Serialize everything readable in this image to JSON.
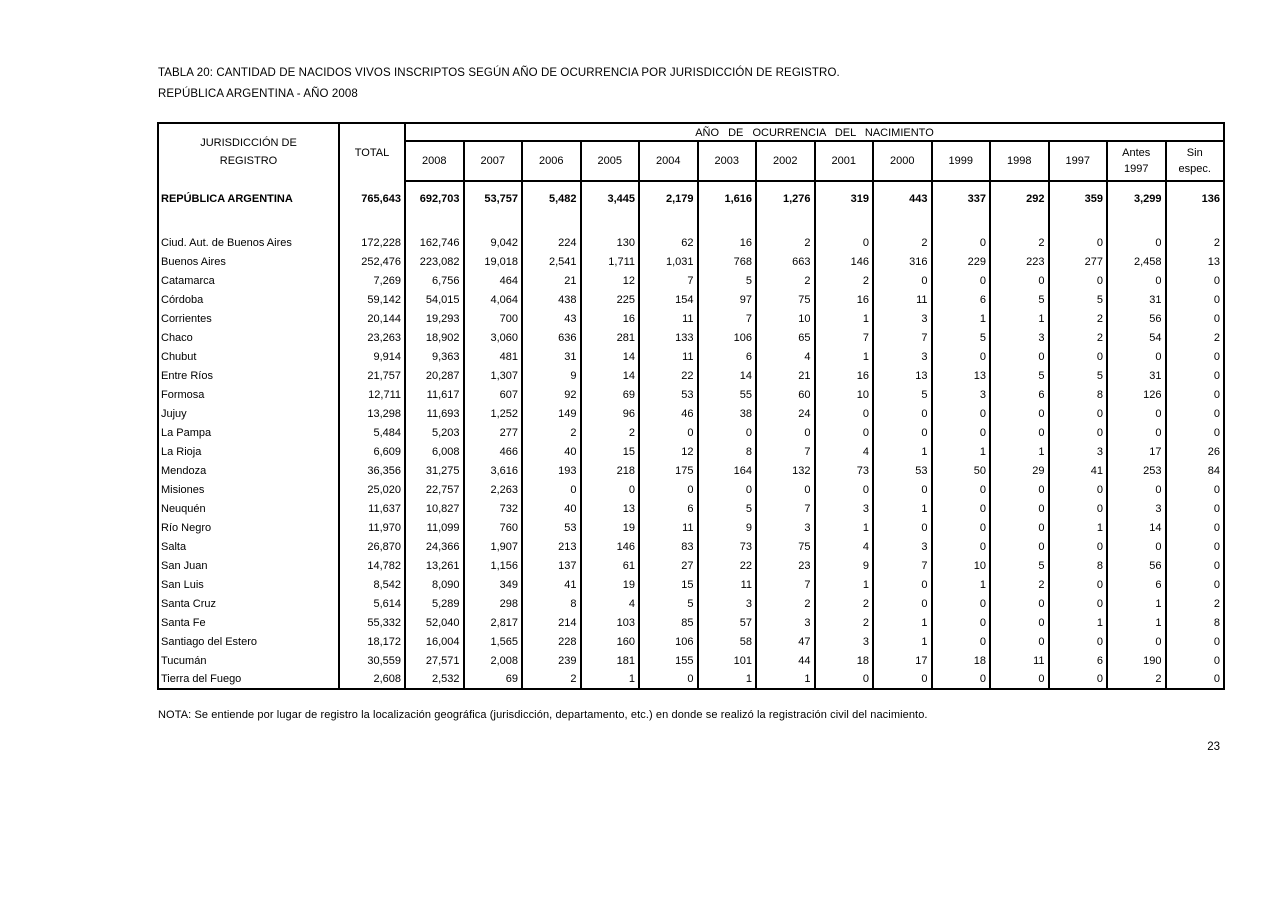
{
  "colors": {
    "text": "#000000",
    "background": "#ffffff",
    "border": "#000000"
  },
  "page": {
    "title_line1": "TABLA 20: CANTIDAD DE NACIDOS VIVOS INSCRIPTOS SEGÚN AÑO DE OCURRENCIA POR JURISDICCIÓN  DE REGISTRO.",
    "title_line2": "REPÚBLICA ARGENTINA -  AÑO 2008",
    "note": "NOTA: Se entiende por lugar de registro la localización geográfica (jurisdicción, departamento, etc.) en donde se realizó la registración civil del nacimiento.",
    "page_number": "23"
  },
  "table": {
    "span_header": "AÑO DE OCURRENCIA DEL NACIMIENTO",
    "jurisdiction_header": "JURISDICCIÓN DE\nREGISTRO",
    "total_header": "TOTAL",
    "year_columns": [
      "2008",
      "2007",
      "2006",
      "2005",
      "2004",
      "2003",
      "2002",
      "2001",
      "2000",
      "1999",
      "1998",
      "1997",
      "Antes\n1997",
      "Sin\nespec."
    ],
    "total_row": {
      "name": "REPÚBLICA ARGENTINA",
      "values": [
        "765,643",
        "692,703",
        "53,757",
        "5,482",
        "3,445",
        "2,179",
        "1,616",
        "1,276",
        "319",
        "443",
        "337",
        "292",
        "359",
        "3,299",
        "136"
      ]
    },
    "rows": [
      {
        "name": "Ciud. Aut. de  Buenos Aires",
        "values": [
          "172,228",
          "162,746",
          "9,042",
          "224",
          "130",
          "62",
          "16",
          "2",
          "0",
          "2",
          "0",
          "2",
          "0",
          "0",
          "2"
        ]
      },
      {
        "name": "Buenos Aires",
        "values": [
          "252,476",
          "223,082",
          "19,018",
          "2,541",
          "1,711",
          "1,031",
          "768",
          "663",
          "146",
          "316",
          "229",
          "223",
          "277",
          "2,458",
          "13"
        ]
      },
      {
        "name": "Catamarca",
        "values": [
          "7,269",
          "6,756",
          "464",
          "21",
          "12",
          "7",
          "5",
          "2",
          "2",
          "0",
          "0",
          "0",
          "0",
          "0",
          "0"
        ]
      },
      {
        "name": "Córdoba",
        "values": [
          "59,142",
          "54,015",
          "4,064",
          "438",
          "225",
          "154",
          "97",
          "75",
          "16",
          "11",
          "6",
          "5",
          "5",
          "31",
          "0"
        ]
      },
      {
        "name": "Corrientes",
        "values": [
          "20,144",
          "19,293",
          "700",
          "43",
          "16",
          "11",
          "7",
          "10",
          "1",
          "3",
          "1",
          "1",
          "2",
          "56",
          "0"
        ]
      },
      {
        "name": "Chaco",
        "values": [
          "23,263",
          "18,902",
          "3,060",
          "636",
          "281",
          "133",
          "106",
          "65",
          "7",
          "7",
          "5",
          "3",
          "2",
          "54",
          "2"
        ]
      },
      {
        "name": "Chubut",
        "values": [
          "9,914",
          "9,363",
          "481",
          "31",
          "14",
          "11",
          "6",
          "4",
          "1",
          "3",
          "0",
          "0",
          "0",
          "0",
          "0"
        ]
      },
      {
        "name": "Entre Ríos",
        "values": [
          "21,757",
          "20,287",
          "1,307",
          "9",
          "14",
          "22",
          "14",
          "21",
          "16",
          "13",
          "13",
          "5",
          "5",
          "31",
          "0"
        ]
      },
      {
        "name": "Formosa",
        "values": [
          "12,711",
          "11,617",
          "607",
          "92",
          "69",
          "53",
          "55",
          "60",
          "10",
          "5",
          "3",
          "6",
          "8",
          "126",
          "0"
        ]
      },
      {
        "name": "Jujuy",
        "values": [
          "13,298",
          "11,693",
          "1,252",
          "149",
          "96",
          "46",
          "38",
          "24",
          "0",
          "0",
          "0",
          "0",
          "0",
          "0",
          "0"
        ]
      },
      {
        "name": "La Pampa",
        "values": [
          "5,484",
          "5,203",
          "277",
          "2",
          "2",
          "0",
          "0",
          "0",
          "0",
          "0",
          "0",
          "0",
          "0",
          "0",
          "0"
        ]
      },
      {
        "name": "La Rioja",
        "values": [
          "6,609",
          "6,008",
          "466",
          "40",
          "15",
          "12",
          "8",
          "7",
          "4",
          "1",
          "1",
          "1",
          "3",
          "17",
          "26"
        ]
      },
      {
        "name": "Mendoza",
        "values": [
          "36,356",
          "31,275",
          "3,616",
          "193",
          "218",
          "175",
          "164",
          "132",
          "73",
          "53",
          "50",
          "29",
          "41",
          "253",
          "84"
        ]
      },
      {
        "name": "Misiones",
        "values": [
          "25,020",
          "22,757",
          "2,263",
          "0",
          "0",
          "0",
          "0",
          "0",
          "0",
          "0",
          "0",
          "0",
          "0",
          "0",
          "0"
        ]
      },
      {
        "name": "Neuquén",
        "values": [
          "11,637",
          "10,827",
          "732",
          "40",
          "13",
          "6",
          "5",
          "7",
          "3",
          "1",
          "0",
          "0",
          "0",
          "3",
          "0"
        ]
      },
      {
        "name": "Río Negro",
        "values": [
          "11,970",
          "11,099",
          "760",
          "53",
          "19",
          "11",
          "9",
          "3",
          "1",
          "0",
          "0",
          "0",
          "1",
          "14",
          "0"
        ]
      },
      {
        "name": "Salta",
        "values": [
          "26,870",
          "24,366",
          "1,907",
          "213",
          "146",
          "83",
          "73",
          "75",
          "4",
          "3",
          "0",
          "0",
          "0",
          "0",
          "0"
        ]
      },
      {
        "name": "San Juan",
        "values": [
          "14,782",
          "13,261",
          "1,156",
          "137",
          "61",
          "27",
          "22",
          "23",
          "9",
          "7",
          "10",
          "5",
          "8",
          "56",
          "0"
        ]
      },
      {
        "name": "San Luis",
        "values": [
          "8,542",
          "8,090",
          "349",
          "41",
          "19",
          "15",
          "11",
          "7",
          "1",
          "0",
          "1",
          "2",
          "0",
          "6",
          "0"
        ]
      },
      {
        "name": "Santa Cruz",
        "values": [
          "5,614",
          "5,289",
          "298",
          "8",
          "4",
          "5",
          "3",
          "2",
          "2",
          "0",
          "0",
          "0",
          "0",
          "1",
          "2"
        ]
      },
      {
        "name": "Santa Fe",
        "values": [
          "55,332",
          "52,040",
          "2,817",
          "214",
          "103",
          "85",
          "57",
          "3",
          "2",
          "1",
          "0",
          "0",
          "1",
          "1",
          "8"
        ]
      },
      {
        "name": "Santiago del Estero",
        "values": [
          "18,172",
          "16,004",
          "1,565",
          "228",
          "160",
          "106",
          "58",
          "47",
          "3",
          "1",
          "0",
          "0",
          "0",
          "0",
          "0"
        ]
      },
      {
        "name": "Tucumán",
        "values": [
          "30,559",
          "27,571",
          "2,008",
          "239",
          "181",
          "155",
          "101",
          "44",
          "18",
          "17",
          "18",
          "11",
          "6",
          "190",
          "0"
        ]
      },
      {
        "name": "Tierra del Fuego",
        "values": [
          "2,608",
          "2,532",
          "69",
          "2",
          "1",
          "0",
          "1",
          "1",
          "0",
          "0",
          "0",
          "0",
          "0",
          "2",
          "0"
        ]
      }
    ]
  }
}
